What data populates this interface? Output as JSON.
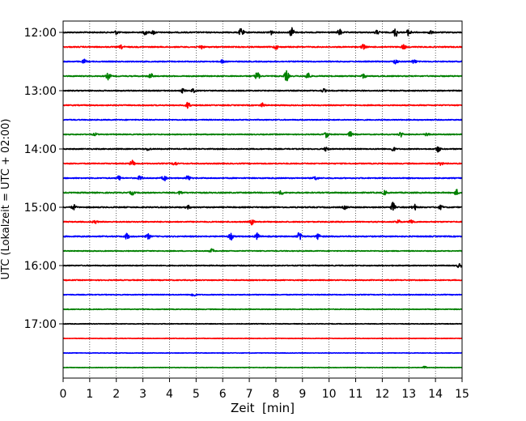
{
  "chart_data": {
    "type": "line",
    "title": "",
    "xlabel": "Zeit  [min]",
    "ylabel": "UTC (Lokalzeit = UTC + 02:00)",
    "xlim": [
      0,
      15
    ],
    "x_ticks": [
      0,
      1,
      2,
      3,
      4,
      5,
      6,
      7,
      8,
      9,
      10,
      11,
      12,
      13,
      14,
      15
    ],
    "x_tick_labels": [
      "0",
      "1",
      "2",
      "3",
      "4",
      "5",
      "6",
      "7",
      "8",
      "9",
      "10",
      "11",
      "12",
      "13",
      "14",
      "15"
    ],
    "y_tick_labels": [
      "12:00",
      "13:00",
      "14:00",
      "15:00",
      "16:00",
      "17:00"
    ],
    "grid": {
      "vertical_dotted": true
    },
    "trace_colors": [
      "#000000",
      "#ff0000",
      "#0000ff",
      "#008000"
    ],
    "series": [
      {
        "start": "12:00",
        "noise": 0.55,
        "events": [
          [
            2.0,
            0.9
          ],
          [
            3.1,
            1.2
          ],
          [
            3.4,
            1.0
          ],
          [
            6.7,
            2.2
          ],
          [
            7.8,
            1.3
          ],
          [
            8.6,
            2.6
          ],
          [
            10.4,
            1.6
          ],
          [
            11.8,
            1.0
          ],
          [
            12.5,
            2.4
          ],
          [
            13.0,
            1.8
          ],
          [
            13.8,
            1.0
          ]
        ]
      },
      {
        "start": "12:15",
        "noise": 0.55,
        "events": [
          [
            2.2,
            0.9
          ],
          [
            5.2,
            1.0
          ],
          [
            8.0,
            1.1
          ],
          [
            11.3,
            1.4
          ],
          [
            12.8,
            1.2
          ]
        ]
      },
      {
        "start": "12:30",
        "noise": 0.5,
        "events": [
          [
            0.8,
            1.0
          ],
          [
            6.0,
            0.9
          ],
          [
            12.5,
            1.3
          ],
          [
            13.2,
            1.0
          ]
        ]
      },
      {
        "start": "12:45",
        "noise": 0.5,
        "events": [
          [
            1.7,
            1.8
          ],
          [
            3.3,
            1.3
          ],
          [
            7.3,
            2.4
          ],
          [
            8.4,
            2.8
          ],
          [
            9.2,
            2.0
          ],
          [
            11.3,
            1.1
          ]
        ]
      },
      {
        "start": "13:00",
        "noise": 0.5,
        "events": [
          [
            4.5,
            1.0
          ],
          [
            4.9,
            0.9
          ],
          [
            9.8,
            0.8
          ]
        ]
      },
      {
        "start": "13:15",
        "noise": 0.5,
        "events": [
          [
            4.7,
            1.9
          ],
          [
            7.5,
            1.0
          ]
        ]
      },
      {
        "start": "13:30",
        "noise": 0.45,
        "events": []
      },
      {
        "start": "13:45",
        "noise": 0.45,
        "events": [
          [
            1.2,
            0.6
          ],
          [
            9.9,
            1.6
          ],
          [
            10.8,
            1.3
          ],
          [
            12.7,
            1.2
          ],
          [
            13.7,
            1.3
          ]
        ]
      },
      {
        "start": "14:00",
        "noise": 0.5,
        "events": [
          [
            3.2,
            0.8
          ],
          [
            9.9,
            1.2
          ],
          [
            12.4,
            1.2
          ],
          [
            14.1,
            1.6
          ]
        ]
      },
      {
        "start": "14:15",
        "noise": 0.5,
        "events": [
          [
            2.6,
            1.7
          ],
          [
            4.2,
            1.0
          ],
          [
            14.2,
            0.9
          ]
        ]
      },
      {
        "start": "14:30",
        "noise": 0.5,
        "events": [
          [
            2.1,
            1.2
          ],
          [
            2.9,
            1.3
          ],
          [
            3.8,
            1.5
          ],
          [
            4.7,
            1.4
          ],
          [
            9.5,
            1.0
          ]
        ]
      },
      {
        "start": "14:45",
        "noise": 0.55,
        "events": [
          [
            2.6,
            1.0
          ],
          [
            4.4,
            0.8
          ],
          [
            8.2,
            1.0
          ],
          [
            12.1,
            1.0
          ],
          [
            14.8,
            1.5
          ]
        ]
      },
      {
        "start": "15:00",
        "noise": 0.55,
        "events": [
          [
            0.4,
            1.3
          ],
          [
            4.7,
            0.8
          ],
          [
            10.6,
            0.9
          ],
          [
            12.4,
            2.4
          ],
          [
            13.2,
            1.6
          ],
          [
            14.2,
            1.0
          ]
        ]
      },
      {
        "start": "15:15",
        "noise": 0.5,
        "events": [
          [
            1.2,
            0.9
          ],
          [
            7.1,
            1.4
          ],
          [
            12.6,
            1.0
          ],
          [
            13.1,
            1.3
          ]
        ]
      },
      {
        "start": "15:30",
        "noise": 0.55,
        "events": [
          [
            2.4,
            1.5
          ],
          [
            3.2,
            1.3
          ],
          [
            6.3,
            1.9
          ],
          [
            7.3,
            1.6
          ],
          [
            8.9,
            2.6
          ],
          [
            9.6,
            1.5
          ]
        ]
      },
      {
        "start": "15:45",
        "noise": 0.4,
        "events": [
          [
            5.6,
            1.1
          ]
        ]
      },
      {
        "start": "16:00",
        "noise": 0.45,
        "events": [
          [
            14.9,
            1.2
          ]
        ]
      },
      {
        "start": "16:15",
        "noise": 0.45,
        "events": []
      },
      {
        "start": "16:30",
        "noise": 0.4,
        "events": [
          [
            4.9,
            1.2
          ]
        ]
      },
      {
        "start": "16:45",
        "noise": 0.35,
        "events": []
      },
      {
        "start": "17:00",
        "noise": 0.3,
        "events": []
      },
      {
        "start": "17:15",
        "noise": 0.25,
        "events": []
      },
      {
        "start": "17:30",
        "noise": 0.25,
        "events": []
      },
      {
        "start": "17:45",
        "noise": 0.25,
        "events": [
          [
            13.6,
            0.7
          ]
        ]
      }
    ]
  }
}
